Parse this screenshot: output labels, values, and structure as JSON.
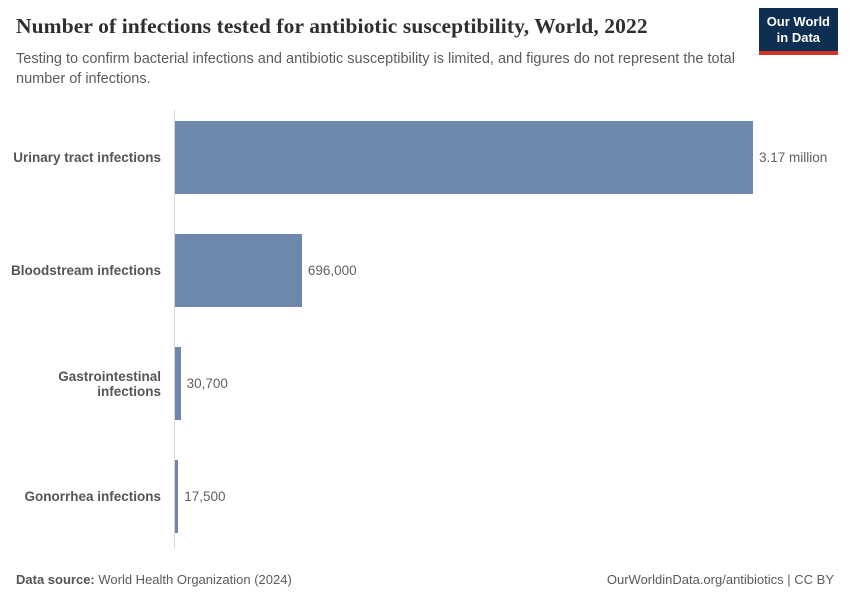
{
  "header": {
    "title": "Number of infections tested for antibiotic susceptibility, World, 2022",
    "subtitle": "Testing to confirm bacterial infections and antibiotic susceptibility is limited, and figures do not represent the total number of infections.",
    "logo": {
      "line1": "Our World",
      "line2": "in Data",
      "background_color": "#0e2f51",
      "accent_color": "#cf3425"
    }
  },
  "chart_data": {
    "type": "bar",
    "orientation": "horizontal",
    "title": "Number of infections tested for antibiotic susceptibility, World, 2022",
    "categories": [
      "Urinary tract infections",
      "Bloodstream infections",
      "Gastrointestinal infections",
      "Gonorrhea infections"
    ],
    "values": [
      3170000,
      696000,
      30700,
      17500
    ],
    "value_labels": [
      "3.17 million",
      "696,000",
      "30,700",
      "17,500"
    ],
    "bar_color": "#6d87ad",
    "xlim": [
      0,
      3170000
    ],
    "grid": false,
    "legend": "none"
  },
  "footer": {
    "datasource_label": "Data source:",
    "datasource_value": " World Health Organization (2024)",
    "link": "OurWorldinData.org/antibiotics",
    "separator": " | ",
    "license": "CC BY"
  }
}
